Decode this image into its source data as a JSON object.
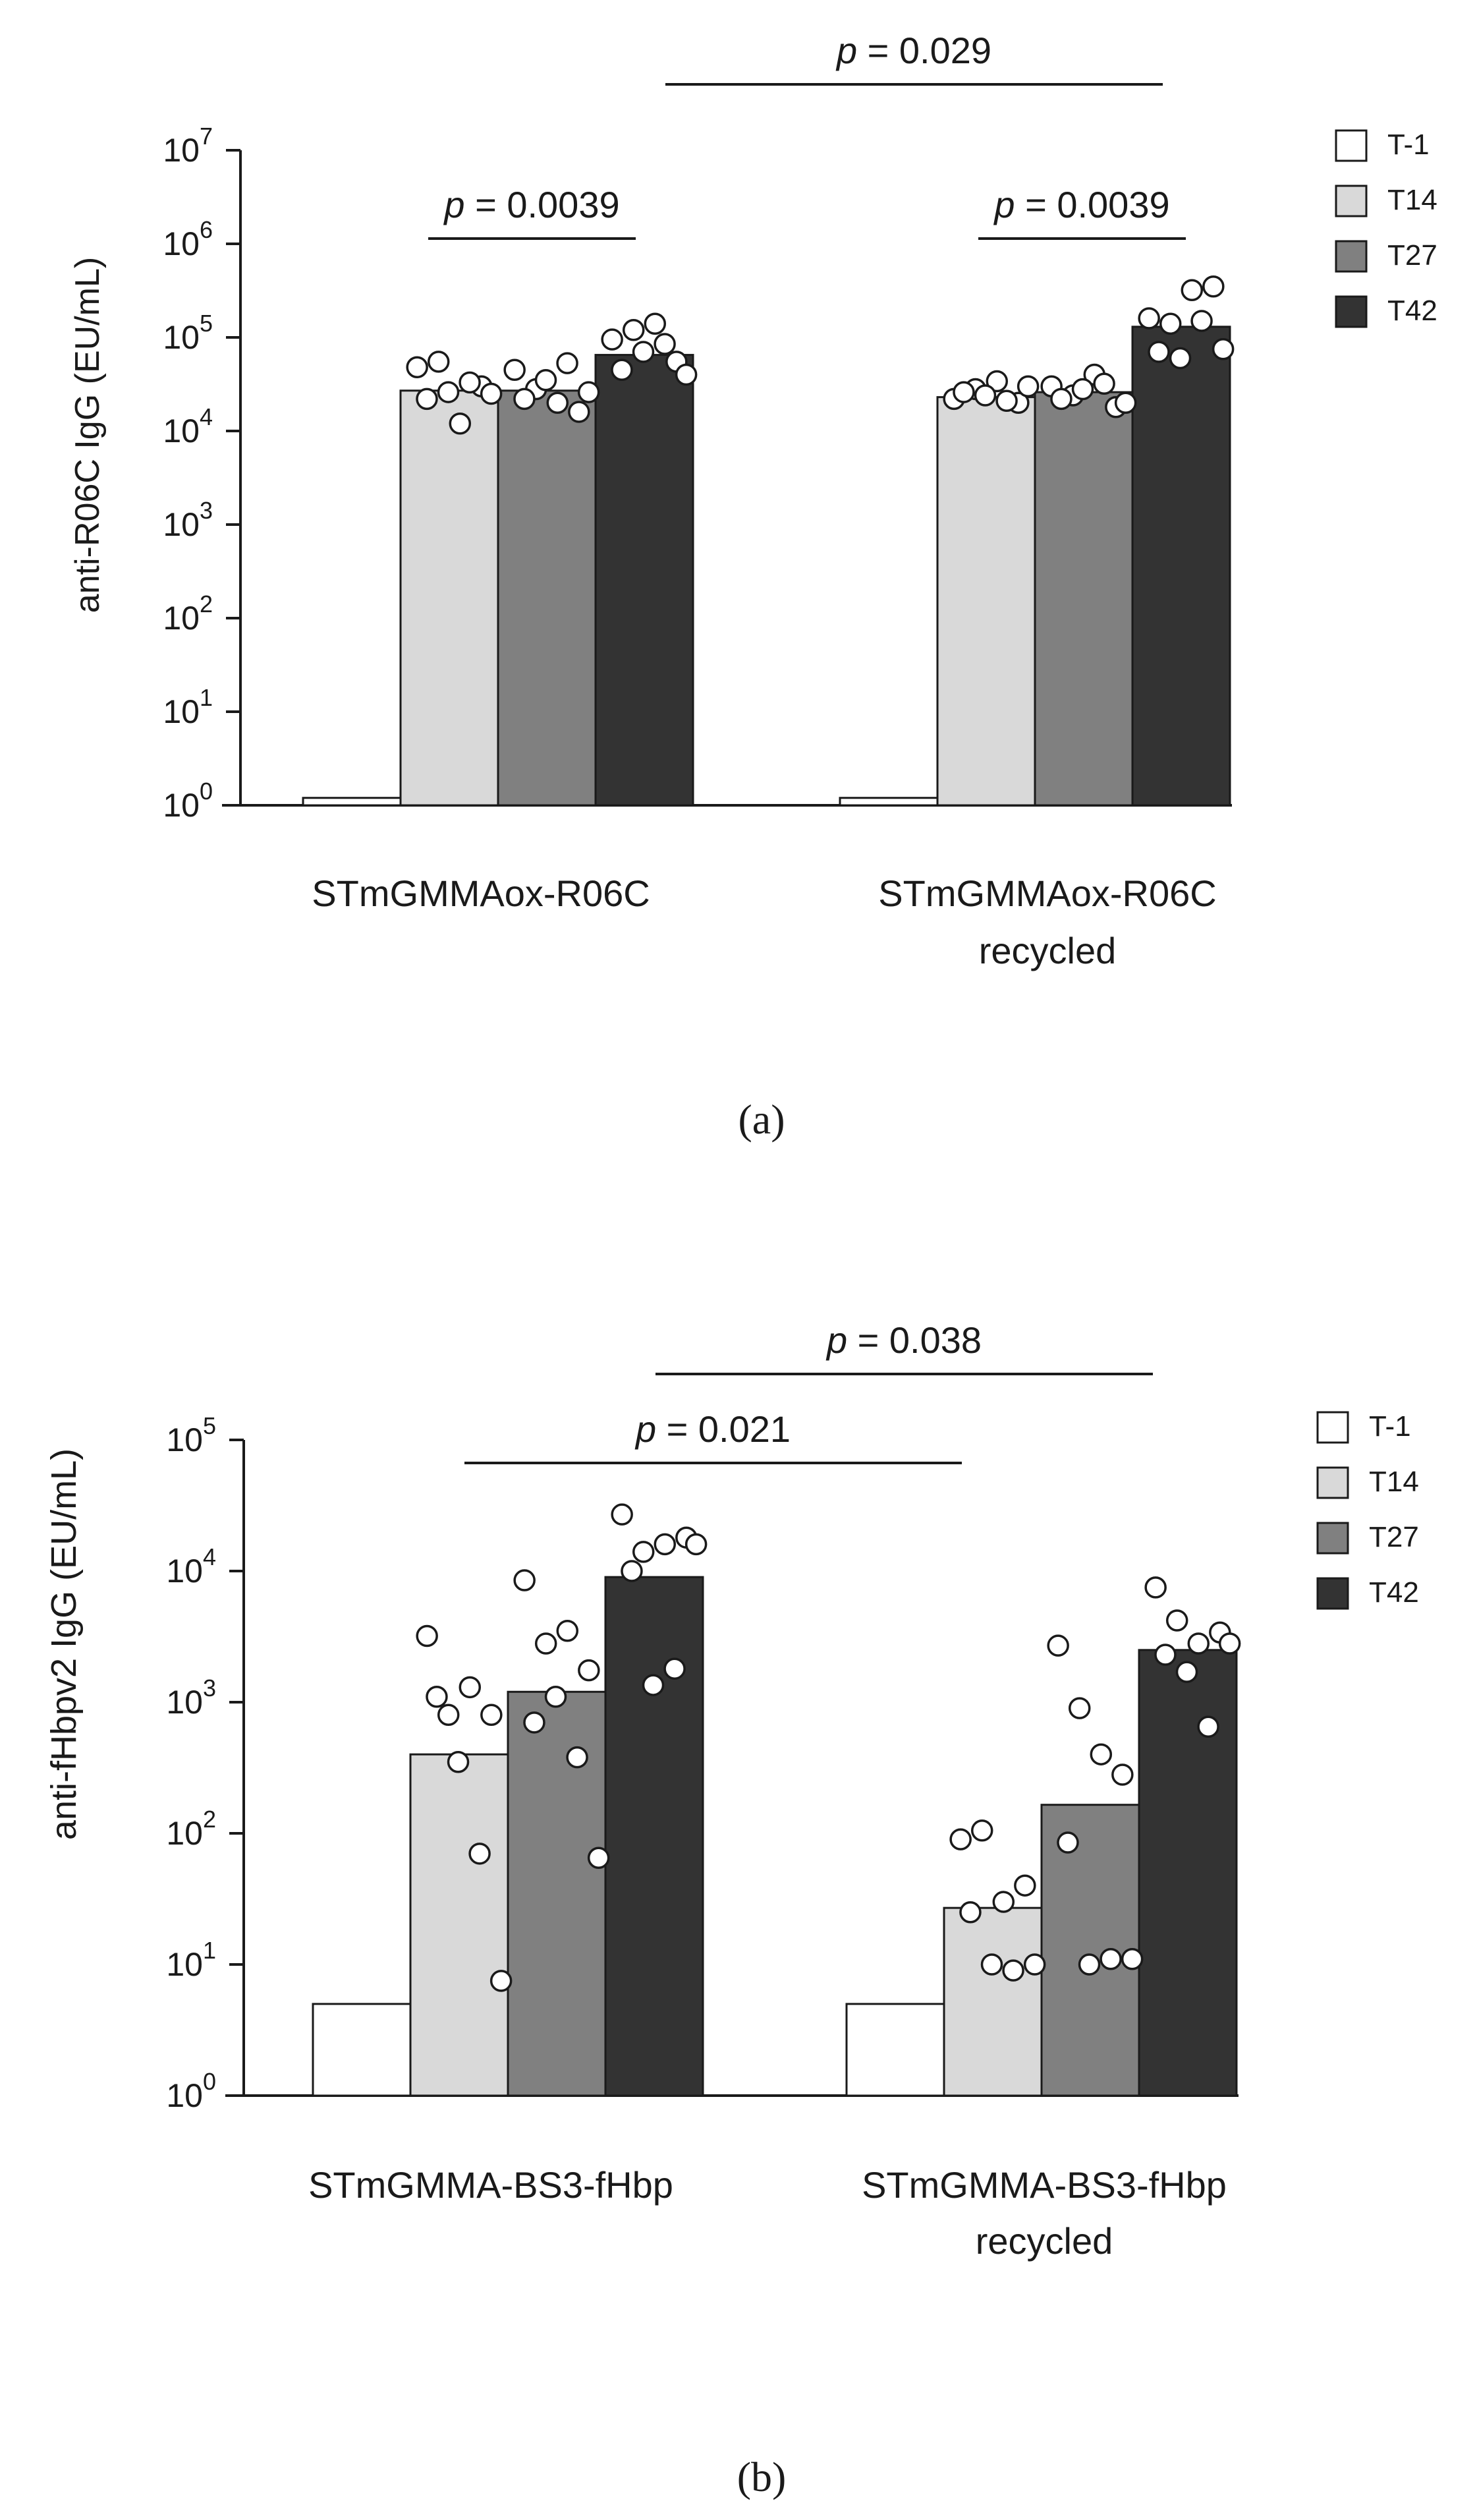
{
  "legend": [
    {
      "label": "T-1",
      "color": "#ffffff"
    },
    {
      "label": "T14",
      "color": "#d9d9d9"
    },
    {
      "label": "T27",
      "color": "#808080"
    },
    {
      "label": "T42",
      "color": "#333333"
    }
  ],
  "chart_data": [
    {
      "type": "bar",
      "panel_label": "(a)",
      "yscale": "log",
      "ylabel": "anti-R06C IgG (EU/mL)",
      "ylim": [
        1,
        10000000
      ],
      "yticks": [
        {
          "base": "10",
          "exp": "0"
        },
        {
          "base": "10",
          "exp": "1"
        },
        {
          "base": "10",
          "exp": "2"
        },
        {
          "base": "10",
          "exp": "3"
        },
        {
          "base": "10",
          "exp": "4"
        },
        {
          "base": "10",
          "exp": "5"
        },
        {
          "base": "10",
          "exp": "6"
        },
        {
          "base": "10",
          "exp": "7"
        }
      ],
      "groups": [
        {
          "label_lines": [
            "STmGMMAox-R06C"
          ]
        },
        {
          "label_lines": [
            "STmGMMAox-R06C",
            "recycled"
          ]
        }
      ],
      "series": [
        {
          "name": "T-1",
          "values": [
            1.2,
            1.2
          ],
          "points": [
            [],
            []
          ]
        },
        {
          "name": "T14",
          "values": [
            27000,
            23000
          ],
          "points": [
            [
              48000,
              55000,
              12000,
              30000,
              22000,
              26000,
              33000,
              25000
            ],
            [
              22000,
              28000,
              34000,
              20000,
              26000,
              24000,
              21000,
              30000
            ]
          ]
        },
        {
          "name": "T27",
          "values": [
            27000,
            26000
          ],
          "points": [
            [
              45000,
              28000,
              20000,
              16000,
              22000,
              35000,
              53000,
              26000
            ],
            [
              30000,
              24000,
              40000,
              18000,
              22000,
              28000,
              32000,
              20000
            ]
          ]
        },
        {
          "name": "T42",
          "values": [
            65000,
            130000
          ],
          "points": [
            [
              95000,
              120000,
              140000,
              55000,
              45000,
              70000,
              85000,
              40000
            ],
            [
              160000,
              140000,
              320000,
              350000,
              70000,
              60000,
              150000,
              75000
            ]
          ]
        }
      ],
      "comparisons": [
        {
          "text": "p = 0.0039",
          "label_p": "p",
          "label_rest": " = 0.0039"
        },
        {
          "text": "p = 0.0039",
          "label_p": "p",
          "label_rest": " = 0.0039"
        },
        {
          "text": "p = 0.029",
          "label_p": "p",
          "label_rest": " = 0.029"
        }
      ]
    },
    {
      "type": "bar",
      "panel_label": "(b)",
      "yscale": "log",
      "ylabel": "anti-fHbpv2 IgG (EU/mL)",
      "ylim": [
        1,
        100000
      ],
      "yticks": [
        {
          "base": "10",
          "exp": "0"
        },
        {
          "base": "10",
          "exp": "1"
        },
        {
          "base": "10",
          "exp": "2"
        },
        {
          "base": "10",
          "exp": "3"
        },
        {
          "base": "10",
          "exp": "4"
        },
        {
          "base": "10",
          "exp": "5"
        }
      ],
      "groups": [
        {
          "label_lines": [
            "STmGMMA-BS3-fHbp"
          ]
        },
        {
          "label_lines": [
            "STmGMMA-BS3-fHbp",
            "recycled"
          ]
        }
      ],
      "series": [
        {
          "name": "T-1",
          "values": [
            5,
            5
          ],
          "points": [
            [],
            []
          ]
        },
        {
          "name": "T14",
          "values": [
            400,
            27
          ],
          "points": [
            [
              3200,
              800,
              1300,
              800,
              1100,
              350,
              70,
              7.5
            ],
            [
              90,
              105,
              30,
              40,
              25,
              10,
              9,
              10
            ]
          ]
        },
        {
          "name": "T27",
          "values": [
            1200,
            165
          ],
          "points": [
            [
              8500,
              2800,
              3500,
              1750,
              700,
              1100,
              380,
              65
            ],
            [
              2700,
              900,
              400,
              280,
              85,
              10,
              11,
              11
            ]
          ]
        },
        {
          "name": "T42",
          "values": [
            9000,
            2500
          ],
          "points": [
            [
              27000,
              14000,
              16000,
              18000,
              10000,
              1350,
              1800,
              16000
            ],
            [
              7500,
              4200,
              2800,
              3400,
              2300,
              1700,
              650,
              2800
            ]
          ]
        }
      ],
      "comparisons": [
        {
          "text": "p = 0.021",
          "label_p": "p",
          "label_rest": " = 0.021"
        },
        {
          "text": "p = 0.038",
          "label_p": "p",
          "label_rest": " = 0.038"
        }
      ]
    }
  ]
}
